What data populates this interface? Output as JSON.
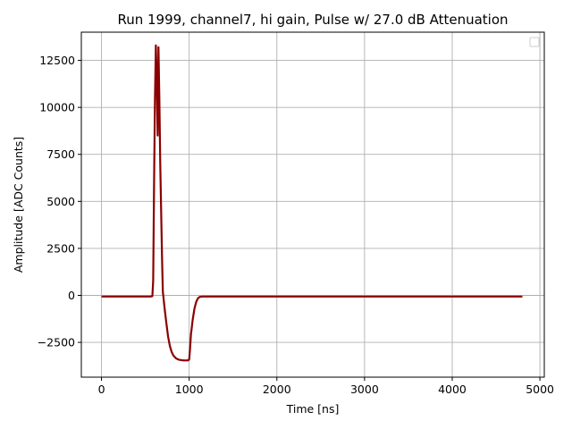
{
  "chart_data": {
    "type": "line",
    "title": "Run 1999, channel7, hi gain, Pulse w/ 27.0 dB Attenuation",
    "xlabel": "Time [ns]",
    "ylabel": "Amplitude [ADC Counts]",
    "xlim": [
      -230,
      5050
    ],
    "ylim": [
      -4350,
      14000
    ],
    "grid": true,
    "legend": "top-right (empty)",
    "line_color": "#8b0000",
    "x_ticks": [
      {
        "value": 0,
        "label": "0"
      },
      {
        "value": 1000,
        "label": "1000"
      },
      {
        "value": 2000,
        "label": "2000"
      },
      {
        "value": 3000,
        "label": "3000"
      },
      {
        "value": 4000,
        "label": "4000"
      },
      {
        "value": 5000,
        "label": "5000"
      }
    ],
    "y_ticks": [
      {
        "value": -2500,
        "label": "−2500"
      },
      {
        "value": 0,
        "label": "0"
      },
      {
        "value": 2500,
        "label": "2500"
      },
      {
        "value": 5000,
        "label": "5000"
      },
      {
        "value": 7500,
        "label": "7500"
      },
      {
        "value": 10000,
        "label": "10000"
      },
      {
        "value": 12500,
        "label": "12500"
      }
    ],
    "series": [
      {
        "x": [
          0,
          200,
          400,
          560,
          580,
          590,
          600,
          610,
          620,
          630,
          640,
          650,
          660,
          670,
          680,
          690,
          700,
          720,
          740,
          760,
          780,
          800,
          820,
          850,
          880,
          920,
          960,
          990,
          1000,
          1010,
          1020,
          1040,
          1060,
          1080,
          1100,
          1120,
          1150,
          1200,
          1300,
          1500,
          2000,
          2500,
          3000,
          3500,
          4000,
          4500,
          4800
        ],
        "y": [
          -60,
          -60,
          -60,
          -60,
          -40,
          800,
          6000,
          10500,
          13300,
          11500,
          8500,
          13200,
          10500,
          7000,
          4500,
          2000,
          200,
          -700,
          -1500,
          -2200,
          -2700,
          -3000,
          -3200,
          -3350,
          -3420,
          -3450,
          -3460,
          -3450,
          -3400,
          -2800,
          -2100,
          -1300,
          -700,
          -350,
          -150,
          -80,
          -60,
          -60,
          -60,
          -60,
          -60,
          -60,
          -60,
          -60,
          -60,
          -60,
          -60
        ]
      }
    ]
  }
}
